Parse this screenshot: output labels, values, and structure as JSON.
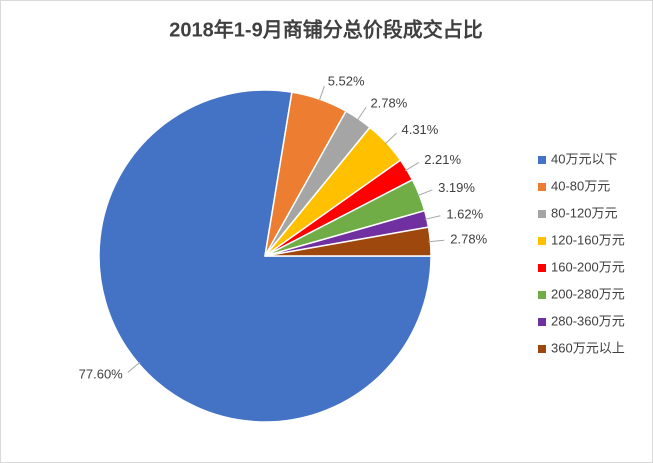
{
  "chart_data": {
    "type": "pie",
    "title": "2018年1-9月商铺分总价段成交占比",
    "categories": [
      "40万元以下",
      "40-80万元",
      "80-120万元",
      "120-160万元",
      "160-200万元",
      "200-280万元",
      "280-360万元",
      "360万元以上"
    ],
    "values": [
      77.6,
      5.52,
      2.78,
      4.31,
      2.21,
      3.19,
      1.62,
      2.78
    ],
    "value_labels": [
      "77.60%",
      "5.52%",
      "2.78%",
      "4.31%",
      "2.21%",
      "3.19%",
      "1.62%",
      "2.78%"
    ],
    "colors": [
      "#4472c4",
      "#ed7d31",
      "#a5a5a5",
      "#ffc000",
      "#ff0000",
      "#70ad47",
      "#7030a0",
      "#9e480e"
    ],
    "legend": "right"
  }
}
